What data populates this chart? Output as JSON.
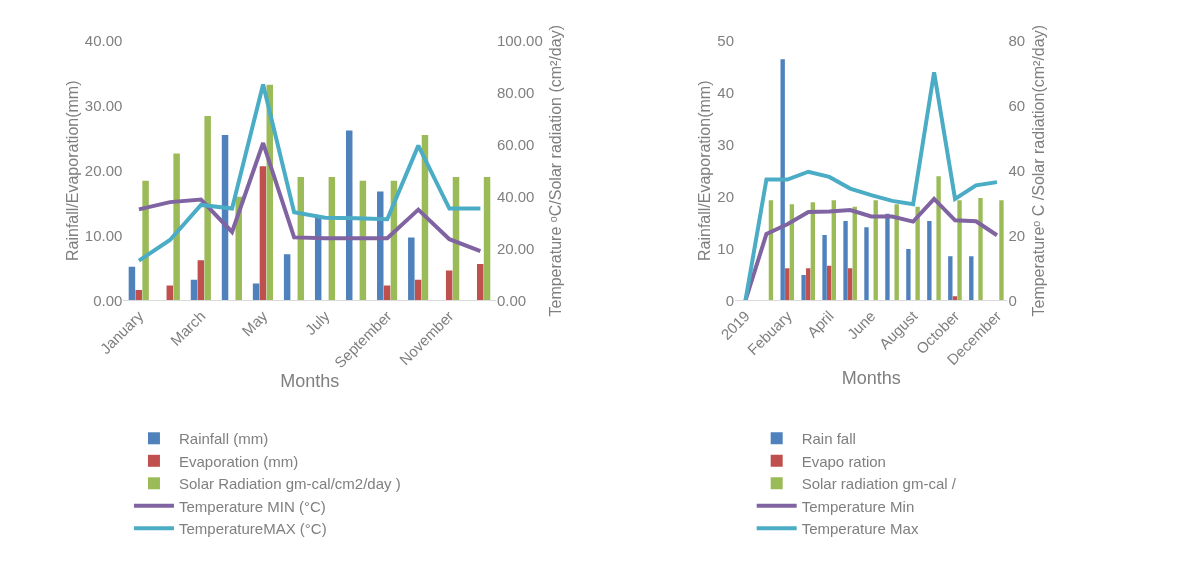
{
  "chart_data": [
    {
      "type": "bar",
      "categories": [
        "January",
        null,
        "March",
        null,
        "May",
        null,
        "July",
        null,
        "September",
        null,
        "November",
        null
      ],
      "xlabel": "Months",
      "ylabel": "Rainfall/Evaporation(mm)",
      "y2label": "Temperature ᵒC/Solar radiation (cm²/day)",
      "ylim": [
        0,
        40
      ],
      "yticks": [
        {
          "value": 0,
          "label": "0.00"
        },
        {
          "value": 10,
          "label": "10.00"
        },
        {
          "value": 20,
          "label": "20.00"
        },
        {
          "value": 30,
          "label": "30.00"
        },
        {
          "value": 40,
          "label": "40.00"
        }
      ],
      "y2lim": [
        0,
        100
      ],
      "y2ticks": [
        {
          "value": 0,
          "label": "0.00"
        },
        {
          "value": 20,
          "label": "20.00"
        },
        {
          "value": 40,
          "label": "40.00"
        },
        {
          "value": 60,
          "label": "60.00"
        },
        {
          "value": 80,
          "label": "80.00"
        },
        {
          "value": 100,
          "label": "100.00"
        }
      ],
      "legend": "bottom",
      "series": [
        {
          "name": "Rainfall (mm)",
          "color": "#4f81bd",
          "values": [
            5.2,
            null,
            3.2,
            25.5,
            2.6,
            7.1,
            12.7,
            26.2,
            16.8,
            9.7,
            null,
            null
          ]
        },
        {
          "name": "Evaporation (mm)",
          "color": "#c0504d",
          "values": [
            1.6,
            2.3,
            6.2,
            null,
            20.7,
            null,
            null,
            null,
            2.3,
            3.2,
            4.6,
            5.6
          ]
        },
        {
          "name": "Solar Radiation gm-cal/cm2/day )",
          "axis": "y2",
          "color": "#9bbb59",
          "values": [
            46.1,
            56.7,
            71.1,
            40,
            83.2,
            47.6,
            47.6,
            46.1,
            46.1,
            63.8,
            47.6,
            47.6
          ]
        },
        {
          "name": "Temperature MIN (°C)",
          "type": "line",
          "axis": "y2",
          "color": "#8064a2",
          "values": [
            35.1,
            37.9,
            38.9,
            26.4,
            60.7,
            24.3,
            24,
            24,
            24,
            35,
            23.6,
            19
          ]
        },
        {
          "name": "TemperatureMAX (°C)",
          "type": "line",
          "axis": "y2",
          "color": "#4bacc6",
          "values": [
            15.3,
            23.3,
            36.8,
            35.4,
            83.3,
            34,
            31.9,
            31.7,
            31.3,
            59.7,
            35.4,
            35.4
          ]
        }
      ]
    },
    {
      "type": "bar",
      "categories": [
        "2019",
        null,
        "Febuary",
        null,
        "April",
        null,
        "June",
        null,
        "August",
        null,
        "October",
        null,
        "December"
      ],
      "xlabel": "Months",
      "ylabel": "Rainfall/Evaporation(mm)",
      "y2label": "Temperatureᵒ C /Solar radiation(cm²/day)",
      "ylim": [
        0,
        50
      ],
      "yticks": [
        0,
        10,
        20,
        30,
        40,
        50
      ],
      "y2lim": [
        0,
        80
      ],
      "y2ticks": [
        0,
        20,
        40,
        60,
        80
      ],
      "legend": "bottom",
      "series": [
        {
          "name": "Rain fall",
          "color": "#4f81bd",
          "values": [
            null,
            null,
            46.5,
            4.9,
            12.6,
            15.3,
            14.1,
            16.7,
            9.9,
            15.3,
            8.5,
            8.5,
            null
          ]
        },
        {
          "name": "Evapo ration",
          "color": "#c0504d",
          "values": [
            null,
            null,
            6.2,
            6.2,
            6.7,
            6.2,
            null,
            null,
            null,
            null,
            0.8,
            null,
            null
          ]
        },
        {
          "name": "Solar radiation gm-cal /",
          "axis": "y2",
          "color": "#9bbb59",
          "values": [
            null,
            30.9,
            29.7,
            30.3,
            30.9,
            28.9,
            30.9,
            29.7,
            28.9,
            38.3,
            30.9,
            31.6,
            30.9
          ]
        },
        {
          "name": "Temperature Min",
          "type": "line",
          "axis": "y2",
          "color": "#8064a2",
          "values": [
            0,
            20.5,
            23.5,
            27.3,
            27.4,
            27.9,
            25.9,
            25.9,
            24.3,
            31.3,
            24.7,
            24.4,
            20.1
          ]
        },
        {
          "name": "Temperature Max",
          "type": "line",
          "axis": "y2",
          "color": "#4bacc6",
          "values": [
            0,
            37.3,
            37.3,
            39.7,
            38.1,
            34.5,
            32.5,
            30.7,
            29.7,
            70.4,
            31.3,
            35.5,
            36.5
          ]
        }
      ]
    }
  ]
}
